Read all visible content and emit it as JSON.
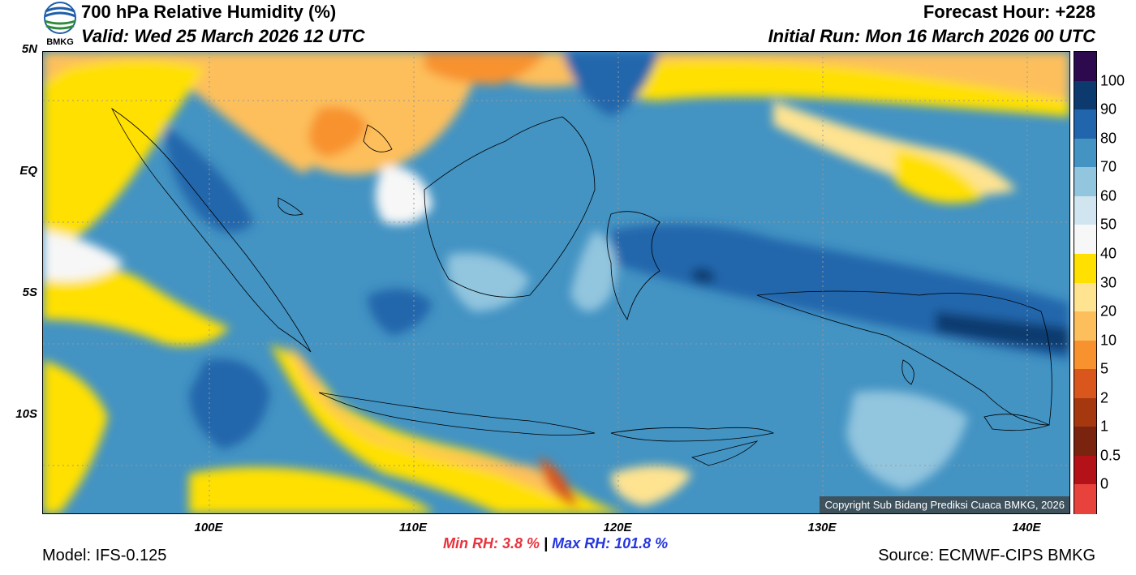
{
  "header": {
    "title": "700 hPa Relative Humidity (%)",
    "valid": "Valid: Wed 25 March 2026 12 UTC",
    "forecast_hour": "Forecast Hour: +228",
    "initial_run": "Initial Run: Mon 16 March 2026 00 UTC",
    "logo_text": "BMKG"
  },
  "axes": {
    "y_ticks": [
      "5N",
      "EQ",
      "5S",
      "10S"
    ],
    "x_ticks": [
      "100E",
      "110E",
      "120E",
      "130E",
      "140E"
    ]
  },
  "colorbar": {
    "labels": [
      "100",
      "90",
      "80",
      "70",
      "60",
      "50",
      "40",
      "30",
      "20",
      "10",
      "5",
      "2",
      "1",
      "0.5",
      "0"
    ],
    "colors": [
      "#2d0a4e",
      "#0d3a6e",
      "#2166ac",
      "#4393c3",
      "#92c5de",
      "#d1e5f0",
      "#f7f7f7",
      "#ffe000",
      "#fee391",
      "#fdbf5c",
      "#f8922e",
      "#d9561c",
      "#a63810",
      "#7a2410",
      "#b21218",
      "#e8423c"
    ]
  },
  "stats": {
    "min_label": "Min RH:",
    "min_value": "3.8 %",
    "separator": "|",
    "max_label": "Max RH:",
    "max_value": "101.8 %"
  },
  "footer": {
    "model": "Model: IFS-0.125",
    "source": "Source: ECMWF-CIPS BMKG",
    "copyright": "Copyright Sub Bidang Prediksi Cuaca BMKG, 2026"
  }
}
